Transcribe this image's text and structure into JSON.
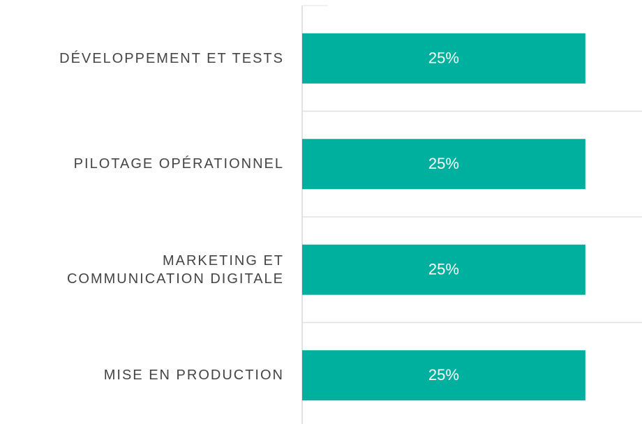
{
  "chart_data": {
    "type": "barh",
    "categories": [
      "DÉVELOPPEMENT ET TESTS",
      "PILOTAGE OPÉRATIONNEL",
      "MARKETING ET\nCOMMUNICATION DIGITALE",
      "MISE EN PRODUCTION"
    ],
    "values": [
      25,
      25,
      25,
      25
    ],
    "value_labels": [
      "25%",
      "25%",
      "25%",
      "25%"
    ],
    "color": "#00b09f",
    "xlim": [
      0,
      30
    ]
  }
}
